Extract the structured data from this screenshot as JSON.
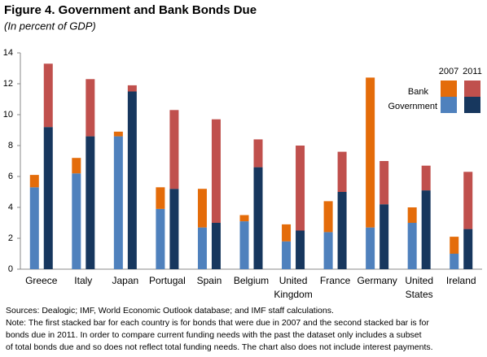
{
  "chart_data": {
    "type": "grouped_stacked_bar",
    "title": "Figure 4. Government and Bank Bonds Due",
    "subtitle": "(In percent of GDP)",
    "categories": [
      "Greece",
      "Italy",
      "Japan",
      "Portugal",
      "Spain",
      "Belgium",
      "United Kingdom",
      "France",
      "Germany",
      "United States",
      "Ireland"
    ],
    "groups": [
      "2007",
      "2011"
    ],
    "stacks": [
      "Government",
      "Bank"
    ],
    "series": [
      {
        "group": 0,
        "stack": 0,
        "color": "#4f81bd",
        "values": [
          5.3,
          6.2,
          8.6,
          3.9,
          2.7,
          3.1,
          1.8,
          2.4,
          2.7,
          3.0,
          1.0
        ]
      },
      {
        "group": 0,
        "stack": 1,
        "color": "#e46c0a",
        "values": [
          0.8,
          1.0,
          0.3,
          1.4,
          2.5,
          0.4,
          1.1,
          2.0,
          9.7,
          1.0,
          1.1
        ]
      },
      {
        "group": 1,
        "stack": 0,
        "color": "#17375e",
        "values": [
          9.2,
          8.6,
          11.5,
          5.2,
          3.0,
          6.6,
          2.5,
          5.0,
          4.2,
          5.1,
          2.6
        ]
      },
      {
        "group": 1,
        "stack": 1,
        "color": "#c0504d",
        "values": [
          4.1,
          3.7,
          0.4,
          5.1,
          6.7,
          1.8,
          5.5,
          2.6,
          2.8,
          1.6,
          3.7
        ]
      }
    ],
    "ylim": [
      0,
      14
    ],
    "yticks": [
      0,
      2,
      4,
      6,
      8,
      10,
      12,
      14
    ],
    "grid": false,
    "notes": [
      "Sources: Dealogic; IMF, World Economic Outlook database; and IMF staff calculations.",
      "Note: The first stacked bar for each country is for bonds that were due in 2007 and the second stacked bar is for",
      "bonds due in 2011. In order to compare current funding needs with the past the dataset only includes a subset",
      "of total bonds due and so does not reflect total funding needs. The chart also does not include interest payments."
    ]
  }
}
